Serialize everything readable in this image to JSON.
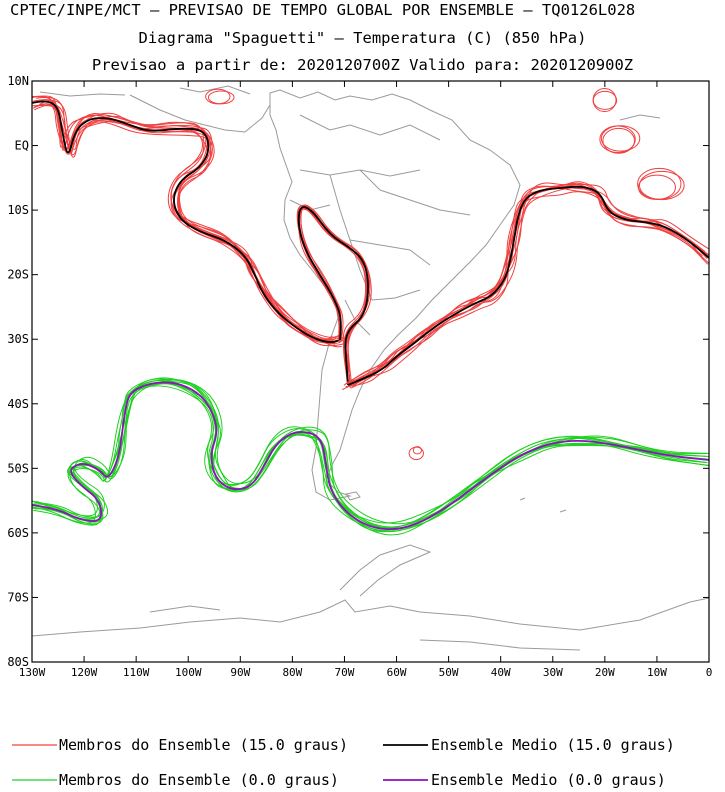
{
  "titles": {
    "line1": "CPTEC/INPE/MCT – PREVISAO DE TEMPO GLOBAL POR ENSEMBLE – TQ0126L028",
    "line2": "Diagrama \"Spaguetti\" – Temperatura (C) (850 hPa)",
    "line3": "Previsao a partir de: 2020120700Z  Valido para: 2020120900Z"
  },
  "axes": {
    "lat_labels": [
      "10N",
      "EQ",
      "10S",
      "20S",
      "30S",
      "40S",
      "50S",
      "60S",
      "70S",
      "80S"
    ],
    "lon_labels": [
      "130W",
      "120W",
      "110W",
      "100W",
      "90W",
      "80W",
      "70W",
      "60W",
      "50W",
      "40W",
      "30W",
      "20W",
      "10W",
      "0"
    ]
  },
  "legend": {
    "members_15": "Membros do Ensemble (15.0 graus)",
    "mean_15": "Ensemble Medio (15.0 graus)",
    "members_0": "Membros do Ensemble (0.0 graus)",
    "mean_0": "Ensemble Medio (0.0 graus)"
  },
  "colors": {
    "members_15": "#f04040",
    "mean_15": "#000000",
    "members_0": "#20d020",
    "mean_0": "#9010c0",
    "coast": "#9a9a9a"
  }
}
